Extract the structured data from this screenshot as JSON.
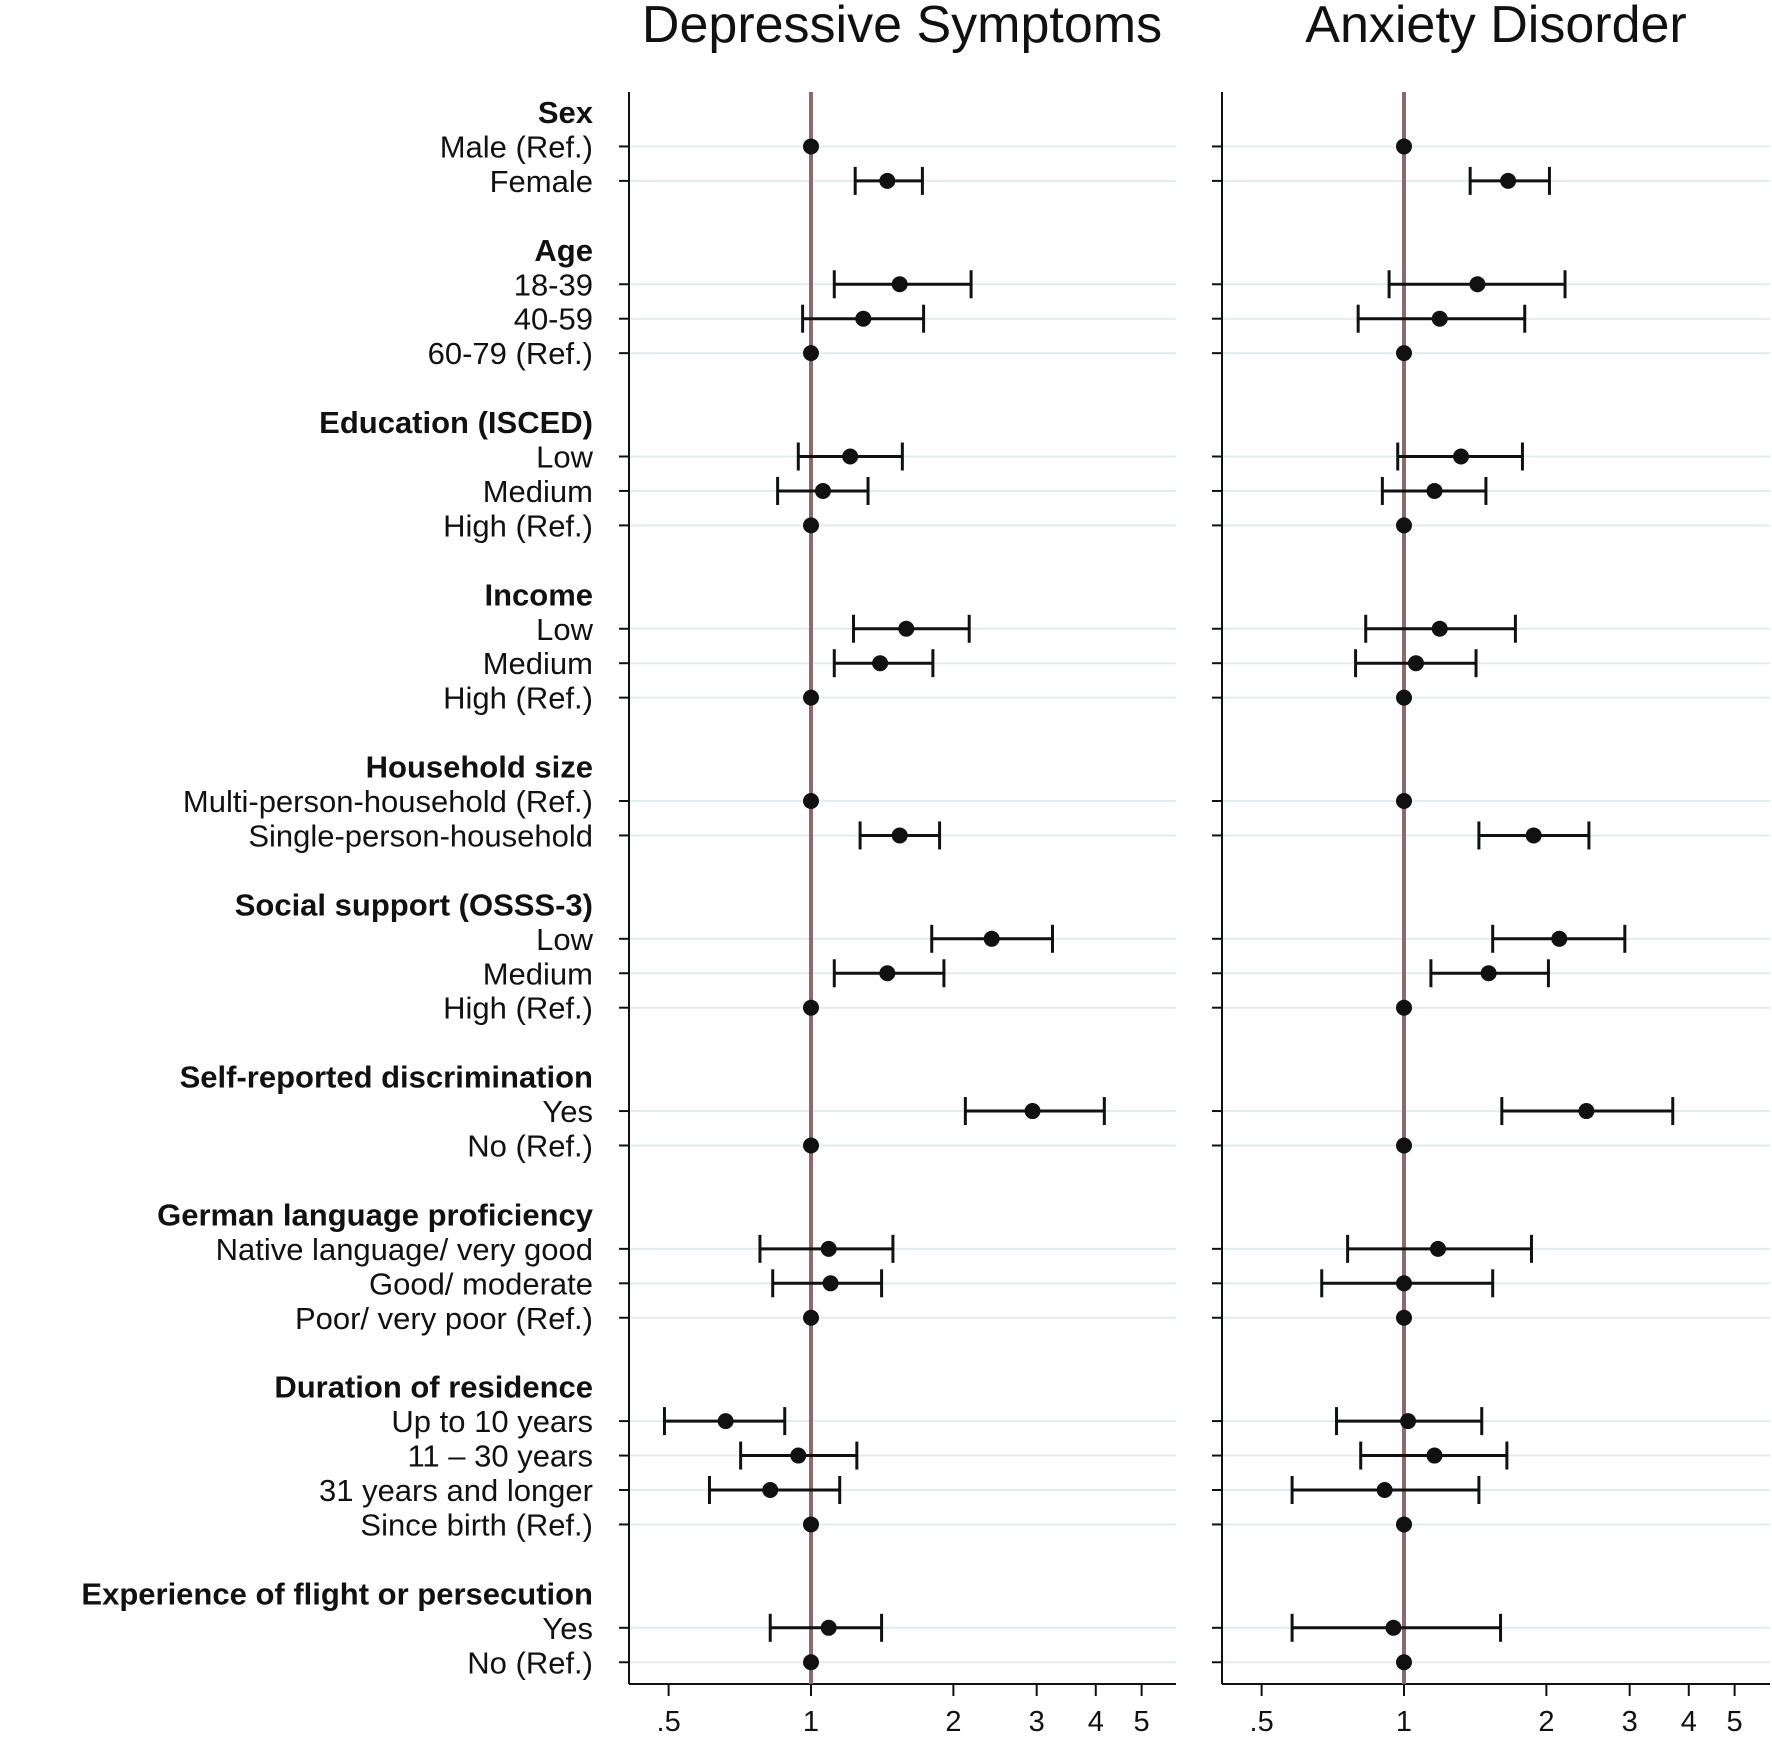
{
  "chart_data": {
    "type": "forest",
    "scale": "log",
    "xlim": [
      0.42,
      6.2
    ],
    "ticks": [
      {
        "value": 0.5,
        "label": ".5"
      },
      {
        "value": 1,
        "label": "1"
      },
      {
        "value": 2,
        "label": "2"
      },
      {
        "value": 3,
        "label": "3"
      },
      {
        "value": 4,
        "label": "4"
      },
      {
        "value": 5,
        "label": "5"
      }
    ],
    "reference_line": 1,
    "colors": {
      "reference_line": "#8b6b70",
      "gridline": "#e3ecee",
      "marker": "#111111",
      "axis": "#111111"
    },
    "panels": [
      {
        "title": "Depressive Symptoms"
      },
      {
        "title": "Anxiety Disorder"
      }
    ],
    "rows": [
      {
        "kind": "group",
        "label": "Sex"
      },
      {
        "kind": "item",
        "label": "Male (Ref.)",
        "est": [
          1,
          1
        ],
        "ci": [
          null,
          null
        ]
      },
      {
        "kind": "item",
        "label": "Female",
        "est": [
          1.45,
          1.66
        ],
        "ci": [
          [
            1.24,
            1.72
          ],
          [
            1.38,
            2.03
          ]
        ]
      },
      {
        "kind": "gap"
      },
      {
        "kind": "group",
        "label": "Age"
      },
      {
        "kind": "item",
        "label": "18-39",
        "est": [
          1.54,
          1.43
        ],
        "ci": [
          [
            1.12,
            2.18
          ],
          [
            0.93,
            2.19
          ]
        ]
      },
      {
        "kind": "item",
        "label": "40-59",
        "est": [
          1.29,
          1.19
        ],
        "ci": [
          [
            0.96,
            1.73
          ],
          [
            0.8,
            1.8
          ]
        ]
      },
      {
        "kind": "item",
        "label": "60-79 (Ref.)",
        "est": [
          1,
          1
        ],
        "ci": [
          null,
          null
        ]
      },
      {
        "kind": "gap"
      },
      {
        "kind": "group",
        "label": "Education (ISCED)"
      },
      {
        "kind": "item",
        "label": "Low",
        "est": [
          1.21,
          1.32
        ],
        "ci": [
          [
            0.94,
            1.56
          ],
          [
            0.97,
            1.78
          ]
        ]
      },
      {
        "kind": "item",
        "label": "Medium",
        "est": [
          1.06,
          1.16
        ],
        "ci": [
          [
            0.85,
            1.32
          ],
          [
            0.9,
            1.49
          ]
        ]
      },
      {
        "kind": "item",
        "label": "High (Ref.)",
        "est": [
          1,
          1
        ],
        "ci": [
          null,
          null
        ]
      },
      {
        "kind": "gap"
      },
      {
        "kind": "group",
        "label": "Income"
      },
      {
        "kind": "item",
        "label": "Low",
        "est": [
          1.59,
          1.19
        ],
        "ci": [
          [
            1.23,
            2.16
          ],
          [
            0.83,
            1.72
          ]
        ]
      },
      {
        "kind": "item",
        "label": "Medium",
        "est": [
          1.4,
          1.06
        ],
        "ci": [
          [
            1.12,
            1.81
          ],
          [
            0.79,
            1.42
          ]
        ]
      },
      {
        "kind": "item",
        "label": "High (Ref.)",
        "est": [
          1,
          1
        ],
        "ci": [
          null,
          null
        ]
      },
      {
        "kind": "gap"
      },
      {
        "kind": "group",
        "label": "Household size"
      },
      {
        "kind": "item",
        "label": "Multi-person-household (Ref.)",
        "est": [
          1,
          1
        ],
        "ci": [
          null,
          null
        ]
      },
      {
        "kind": "item",
        "label": "Single-person-household",
        "est": [
          1.54,
          1.88
        ],
        "ci": [
          [
            1.27,
            1.87
          ],
          [
            1.44,
            2.46
          ]
        ]
      },
      {
        "kind": "gap"
      },
      {
        "kind": "group",
        "label": "Social support (OSSS-3)"
      },
      {
        "kind": "item",
        "label": "Low",
        "est": [
          2.41,
          2.13
        ],
        "ci": [
          [
            1.8,
            3.24
          ],
          [
            1.54,
            2.93
          ]
        ]
      },
      {
        "kind": "item",
        "label": "Medium",
        "est": [
          1.45,
          1.51
        ],
        "ci": [
          [
            1.12,
            1.91
          ],
          [
            1.14,
            2.02
          ]
        ]
      },
      {
        "kind": "item",
        "label": "High (Ref.)",
        "est": [
          1,
          1
        ],
        "ci": [
          null,
          null
        ]
      },
      {
        "kind": "gap"
      },
      {
        "kind": "group",
        "label": "Self-reported discrimination"
      },
      {
        "kind": "item",
        "label": "Yes",
        "est": [
          2.94,
          2.43
        ],
        "ci": [
          [
            2.12,
            4.17
          ],
          [
            1.61,
            3.7
          ]
        ]
      },
      {
        "kind": "item",
        "label": "No (Ref.)",
        "est": [
          1,
          1
        ],
        "ci": [
          null,
          null
        ]
      },
      {
        "kind": "gap"
      },
      {
        "kind": "group",
        "label": "German language proficiency"
      },
      {
        "kind": "item",
        "label": "Native language/ very good",
        "est": [
          1.09,
          1.18
        ],
        "ci": [
          [
            0.78,
            1.49
          ],
          [
            0.76,
            1.86
          ]
        ]
      },
      {
        "kind": "item",
        "label": "Good/ moderate",
        "est": [
          1.1,
          1.0
        ],
        "ci": [
          [
            0.83,
            1.41
          ],
          [
            0.67,
            1.54
          ]
        ]
      },
      {
        "kind": "item",
        "label": "Poor/ very poor (Ref.)",
        "est": [
          1,
          1
        ],
        "ci": [
          null,
          null
        ]
      },
      {
        "kind": "gap"
      },
      {
        "kind": "group",
        "label": "Duration of residence"
      },
      {
        "kind": "item",
        "label": "Up to 10 years",
        "est": [
          0.66,
          1.02
        ],
        "ci": [
          [
            0.49,
            0.88
          ],
          [
            0.72,
            1.46
          ]
        ]
      },
      {
        "kind": "item",
        "label": "11 – 30 years",
        "est": [
          0.94,
          1.16
        ],
        "ci": [
          [
            0.71,
            1.25
          ],
          [
            0.81,
            1.65
          ]
        ]
      },
      {
        "kind": "item",
        "label": "31 years and longer",
        "est": [
          0.82,
          0.91
        ],
        "ci": [
          [
            0.61,
            1.15
          ],
          [
            0.58,
            1.44
          ]
        ]
      },
      {
        "kind": "item",
        "label": "Since birth (Ref.)",
        "est": [
          1,
          1
        ],
        "ci": [
          null,
          null
        ]
      },
      {
        "kind": "gap"
      },
      {
        "kind": "group",
        "label": "Experience of flight or persecution"
      },
      {
        "kind": "item",
        "label": "Yes",
        "est": [
          1.09,
          0.95
        ],
        "ci": [
          [
            0.82,
            1.41
          ],
          [
            0.58,
            1.6
          ]
        ]
      },
      {
        "kind": "item",
        "label": "No (Ref.)",
        "est": [
          1,
          1
        ],
        "ci": [
          null,
          null
        ]
      }
    ]
  }
}
